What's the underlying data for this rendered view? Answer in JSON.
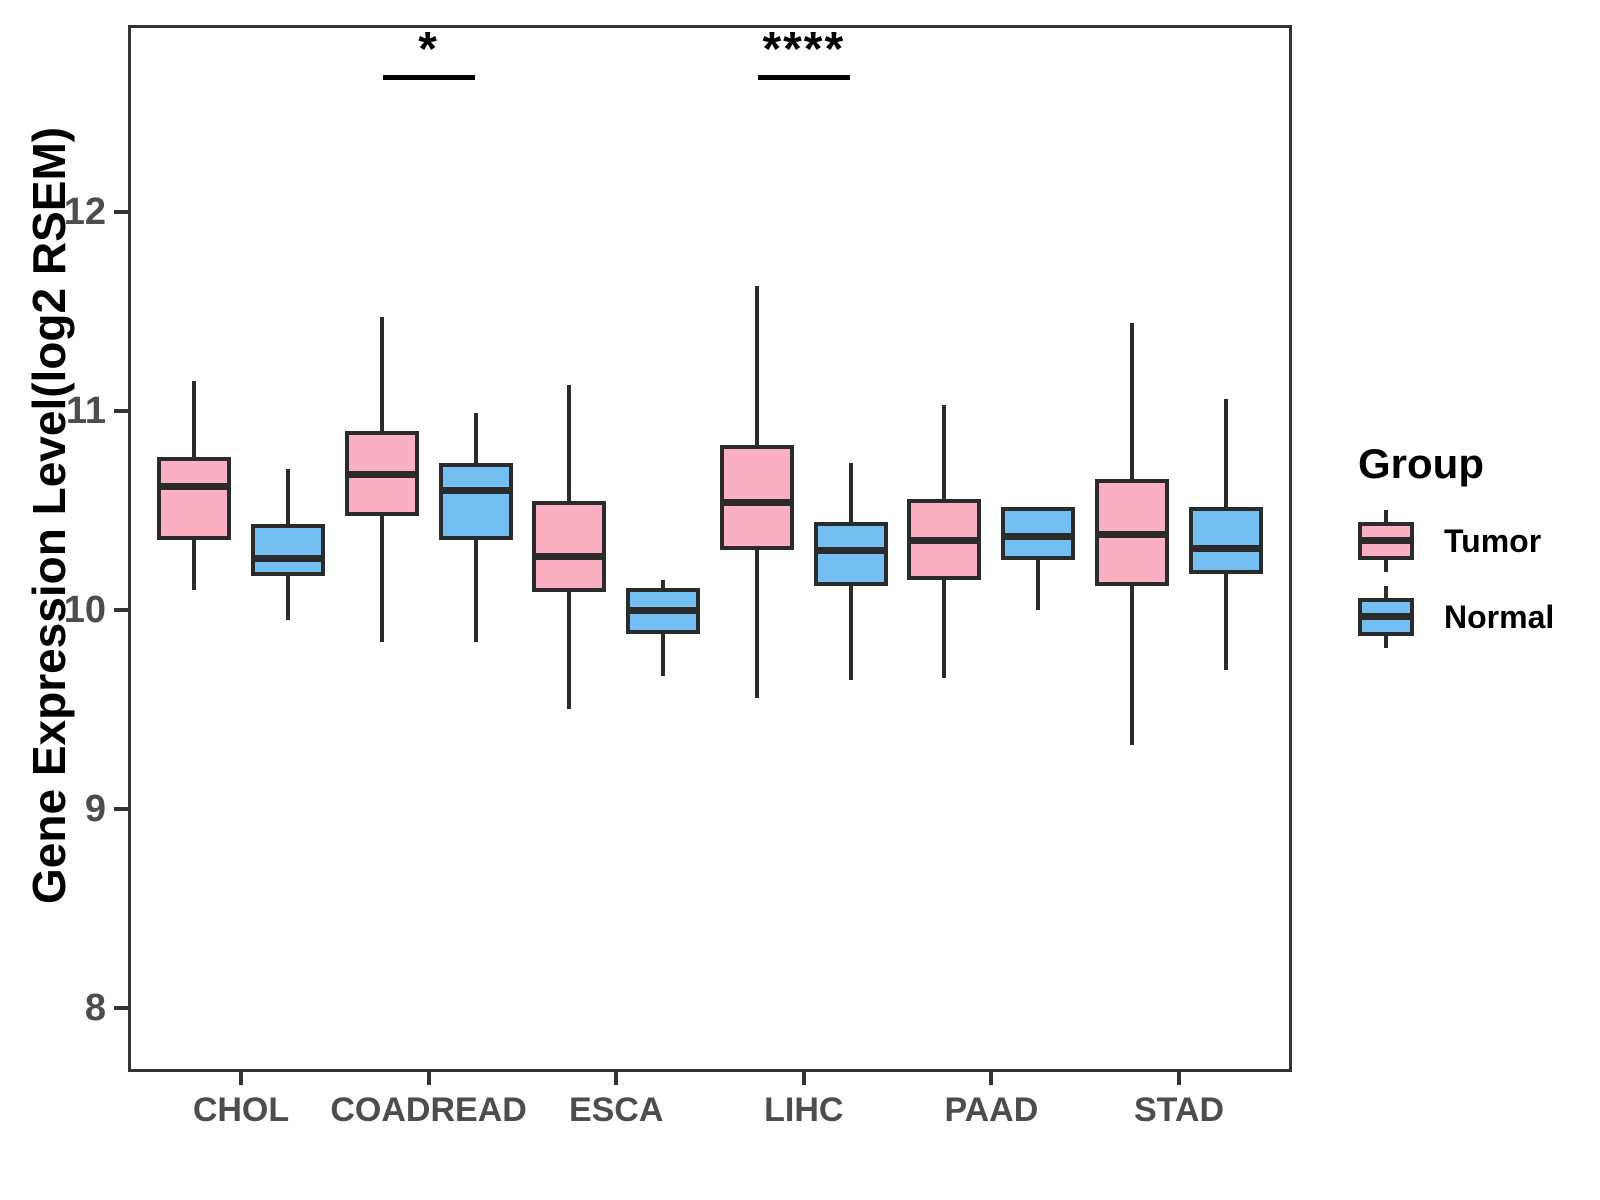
{
  "chart_data": {
    "type": "grouped_boxplot",
    "title": "",
    "xlabel": "",
    "ylabel": "Gene Expression Level(log2 RSEM)",
    "y_ticks": [
      8,
      9,
      10,
      11,
      12
    ],
    "ylim": [
      7.6,
      12.8
    ],
    "grid": false,
    "legend_position": "right",
    "categories": [
      "CHOL",
      "COADREAD",
      "ESCA",
      "LIHC",
      "PAAD",
      "STAD"
    ],
    "groups": [
      {
        "name": "Tumor",
        "color": "#faafc2"
      },
      {
        "name": "Normal",
        "color": "#73bff2"
      }
    ],
    "boxes": [
      {
        "category": "CHOL",
        "group": "Tumor",
        "whisker_low": 10.1,
        "q1": 10.35,
        "median": 10.62,
        "q3": 10.77,
        "whisker_high": 11.15
      },
      {
        "category": "CHOL",
        "group": "Normal",
        "whisker_low": 9.95,
        "q1": 10.17,
        "median": 10.26,
        "q3": 10.43,
        "whisker_high": 10.71
      },
      {
        "category": "COADREAD",
        "group": "Tumor",
        "whisker_low": 9.84,
        "q1": 10.47,
        "median": 10.68,
        "q3": 10.9,
        "whisker_high": 11.47
      },
      {
        "category": "COADREAD",
        "group": "Normal",
        "whisker_low": 9.84,
        "q1": 10.35,
        "median": 10.6,
        "q3": 10.74,
        "whisker_high": 10.99
      },
      {
        "category": "ESCA",
        "group": "Tumor",
        "whisker_low": 9.5,
        "q1": 10.09,
        "median": 10.27,
        "q3": 10.55,
        "whisker_high": 11.13
      },
      {
        "category": "ESCA",
        "group": "Normal",
        "whisker_low": 9.67,
        "q1": 9.88,
        "median": 10.0,
        "q3": 10.11,
        "whisker_high": 10.15
      },
      {
        "category": "LIHC",
        "group": "Tumor",
        "whisker_low": 9.56,
        "q1": 10.3,
        "median": 10.54,
        "q3": 10.83,
        "whisker_high": 11.63
      },
      {
        "category": "LIHC",
        "group": "Normal",
        "whisker_low": 9.65,
        "q1": 10.12,
        "median": 10.3,
        "q3": 10.44,
        "whisker_high": 10.74
      },
      {
        "category": "PAAD",
        "group": "Tumor",
        "whisker_low": 9.66,
        "q1": 10.15,
        "median": 10.35,
        "q3": 10.56,
        "whisker_high": 11.03
      },
      {
        "category": "PAAD",
        "group": "Normal",
        "whisker_low": 10.0,
        "q1": 10.25,
        "median": 10.37,
        "q3": 10.52,
        "whisker_high": 10.52
      },
      {
        "category": "STAD",
        "group": "Tumor",
        "whisker_low": 9.32,
        "q1": 10.12,
        "median": 10.38,
        "q3": 10.66,
        "whisker_high": 11.44
      },
      {
        "category": "STAD",
        "group": "Normal",
        "whisker_low": 9.7,
        "q1": 10.18,
        "median": 10.31,
        "q3": 10.52,
        "whisker_high": 11.06
      }
    ],
    "significance": [
      {
        "category": "COADREAD",
        "label": "*"
      },
      {
        "category": "LIHC",
        "label": "****"
      }
    ],
    "legend": {
      "title": "Group",
      "items": [
        "Tumor",
        "Normal"
      ]
    },
    "colors": {
      "tumor_fill": "#faafc2",
      "normal_fill": "#73bff2",
      "stroke": "#2b2b2b",
      "panel_border": "#333333",
      "tick_text": "#4d4d4d",
      "title_text": "#000000"
    }
  }
}
